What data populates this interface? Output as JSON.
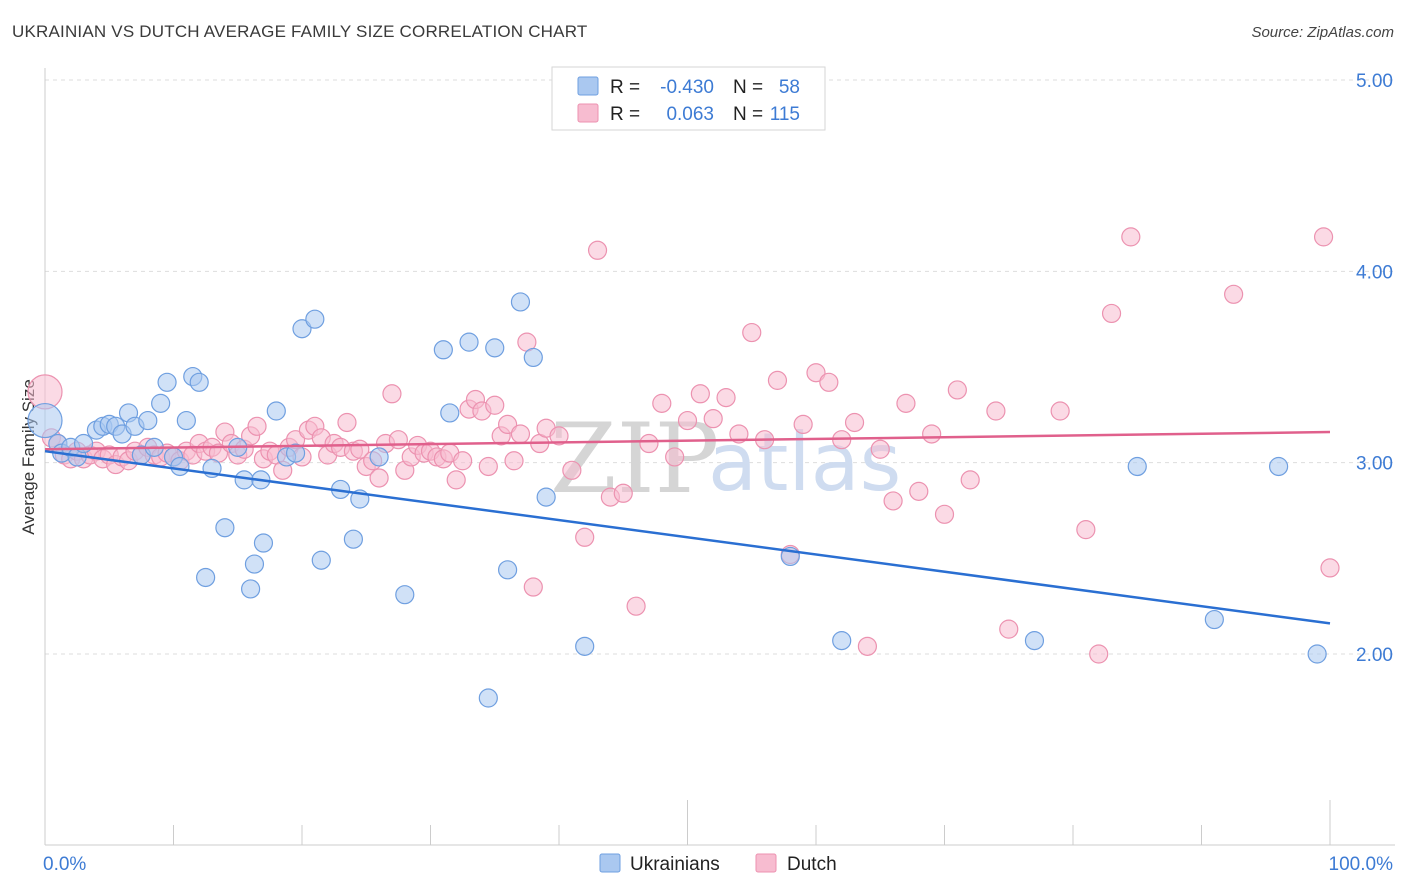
{
  "title": "UKRAINIAN VS DUTCH AVERAGE FAMILY SIZE CORRELATION CHART",
  "source": "Source: ZipAtlas.com",
  "watermark": {
    "zip": "ZIP",
    "atlas": "atlas"
  },
  "colors": {
    "ukrainians_fill": "#aac8f0",
    "ukrainians_stroke": "#6f9fe0",
    "ukrainians_line": "#2a6fd2",
    "dutch_fill": "#f7bcd0",
    "dutch_stroke": "#ec92b0",
    "dutch_line": "#e0608c",
    "axis_text": "#3d7bd4",
    "grid": "#dddddd"
  },
  "stats": [
    {
      "r_label": "R =",
      "r_value": "-0.430",
      "n_label": "N =",
      "n_value": "58",
      "color": "#aac8f0"
    },
    {
      "r_label": "R =",
      "r_value": "0.063",
      "n_label": "N =",
      "n_value": "115",
      "color": "#f7bcd0"
    }
  ],
  "chart_data": {
    "type": "scatter",
    "title": "UKRAINIAN VS DUTCH AVERAGE FAMILY SIZE CORRELATION CHART",
    "xlabel": "",
    "ylabel": "Average Family Size",
    "xlim": [
      0,
      100
    ],
    "ylim": [
      1.0,
      5.1
    ],
    "x_tick_labels": [
      "0.0%",
      "100.0%"
    ],
    "y_ticks": [
      2.0,
      3.0,
      4.0,
      5.0
    ],
    "y_tick_labels": [
      "2.00",
      "3.00",
      "4.00",
      "5.00"
    ],
    "grid": true,
    "legend": "bottom-center",
    "series": [
      {
        "name": "Ukrainians",
        "trend": {
          "x": [
            0,
            100
          ],
          "y": [
            3.06,
            2.16
          ]
        },
        "points": [
          [
            0,
            3.22
          ],
          [
            1,
            3.1
          ],
          [
            1.3,
            3.05
          ],
          [
            2,
            3.08
          ],
          [
            2.5,
            3.03
          ],
          [
            3,
            3.1
          ],
          [
            4,
            3.17
          ],
          [
            4.5,
            3.19
          ],
          [
            5,
            3.2
          ],
          [
            5.5,
            3.19
          ],
          [
            6,
            3.15
          ],
          [
            6.5,
            3.26
          ],
          [
            7,
            3.19
          ],
          [
            7.5,
            3.04
          ],
          [
            8,
            3.22
          ],
          [
            8.5,
            3.08
          ],
          [
            9,
            3.31
          ],
          [
            9.5,
            3.42
          ],
          [
            10,
            3.03
          ],
          [
            10.5,
            2.98
          ],
          [
            11,
            3.22
          ],
          [
            11.5,
            3.45
          ],
          [
            12,
            3.42
          ],
          [
            12.5,
            2.4
          ],
          [
            13,
            2.97
          ],
          [
            14,
            2.66
          ],
          [
            15,
            3.08
          ],
          [
            15.5,
            2.91
          ],
          [
            16,
            2.34
          ],
          [
            16.3,
            2.47
          ],
          [
            16.8,
            2.91
          ],
          [
            17,
            2.58
          ],
          [
            18,
            3.27
          ],
          [
            18.8,
            3.03
          ],
          [
            19.5,
            3.05
          ],
          [
            20,
            3.7
          ],
          [
            21,
            3.75
          ],
          [
            21.5,
            2.49
          ],
          [
            23,
            2.86
          ],
          [
            24,
            2.6
          ],
          [
            24.5,
            2.81
          ],
          [
            26,
            3.03
          ],
          [
            28,
            2.31
          ],
          [
            31,
            3.59
          ],
          [
            31.5,
            3.26
          ],
          [
            33,
            3.63
          ],
          [
            34.5,
            1.77
          ],
          [
            35,
            3.6
          ],
          [
            36,
            2.44
          ],
          [
            37,
            3.84
          ],
          [
            38,
            3.55
          ],
          [
            39,
            2.82
          ],
          [
            42,
            2.04
          ],
          [
            58,
            2.51
          ],
          [
            62,
            2.07
          ],
          [
            77,
            2.07
          ],
          [
            85,
            2.98
          ],
          [
            96,
            2.98
          ],
          [
            91,
            2.18
          ],
          [
            99,
            2.0
          ]
        ]
      },
      {
        "name": "Dutch",
        "trend": {
          "x": [
            0,
            100
          ],
          "y": [
            3.07,
            3.16
          ]
        },
        "points": [
          [
            0,
            3.37
          ],
          [
            0.5,
            3.13
          ],
          [
            1,
            3.1
          ],
          [
            1.5,
            3.04
          ],
          [
            2,
            3.02
          ],
          [
            2.5,
            3.06
          ],
          [
            3,
            3.02
          ],
          [
            3.5,
            3.04
          ],
          [
            4,
            3.06
          ],
          [
            4.5,
            3.02
          ],
          [
            5,
            3.04
          ],
          [
            5.5,
            2.99
          ],
          [
            6,
            3.03
          ],
          [
            6.5,
            3.01
          ],
          [
            7,
            3.06
          ],
          [
            7.5,
            3.04
          ],
          [
            8,
            3.08
          ],
          [
            8.5,
            3.04
          ],
          [
            9,
            3.03
          ],
          [
            9.5,
            3.05
          ],
          [
            10,
            3.03
          ],
          [
            10.5,
            3.01
          ],
          [
            11,
            3.06
          ],
          [
            11.5,
            3.04
          ],
          [
            12,
            3.1
          ],
          [
            12.5,
            3.06
          ],
          [
            13,
            3.08
          ],
          [
            13.5,
            3.05
          ],
          [
            14,
            3.16
          ],
          [
            14.5,
            3.1
          ],
          [
            15,
            3.04
          ],
          [
            15.5,
            3.07
          ],
          [
            16,
            3.14
          ],
          [
            16.5,
            3.19
          ],
          [
            17,
            3.02
          ],
          [
            17.5,
            3.06
          ],
          [
            18,
            3.04
          ],
          [
            18.5,
            2.96
          ],
          [
            19,
            3.08
          ],
          [
            19.5,
            3.12
          ],
          [
            20,
            3.03
          ],
          [
            20.5,
            3.17
          ],
          [
            21,
            3.19
          ],
          [
            21.5,
            3.13
          ],
          [
            22,
            3.04
          ],
          [
            22.5,
            3.1
          ],
          [
            23,
            3.08
          ],
          [
            23.5,
            3.21
          ],
          [
            24,
            3.06
          ],
          [
            24.5,
            3.07
          ],
          [
            25,
            2.98
          ],
          [
            25.5,
            3.01
          ],
          [
            26,
            2.92
          ],
          [
            26.5,
            3.1
          ],
          [
            27,
            3.36
          ],
          [
            27.5,
            3.12
          ],
          [
            28,
            2.96
          ],
          [
            28.5,
            3.03
          ],
          [
            29,
            3.09
          ],
          [
            29.5,
            3.05
          ],
          [
            30,
            3.06
          ],
          [
            30.5,
            3.03
          ],
          [
            31,
            3.02
          ],
          [
            31.5,
            3.05
          ],
          [
            32,
            2.91
          ],
          [
            32.5,
            3.01
          ],
          [
            33,
            3.28
          ],
          [
            33.5,
            3.33
          ],
          [
            34,
            3.27
          ],
          [
            34.5,
            2.98
          ],
          [
            35,
            3.3
          ],
          [
            35.5,
            3.14
          ],
          [
            36,
            3.2
          ],
          [
            36.5,
            3.01
          ],
          [
            37,
            3.15
          ],
          [
            37.5,
            3.63
          ],
          [
            38,
            2.35
          ],
          [
            38.5,
            3.1
          ],
          [
            39,
            3.18
          ],
          [
            40,
            3.14
          ],
          [
            41,
            2.96
          ],
          [
            42,
            2.61
          ],
          [
            43,
            4.11
          ],
          [
            44,
            2.82
          ],
          [
            45,
            2.84
          ],
          [
            46,
            2.25
          ],
          [
            47,
            3.1
          ],
          [
            48,
            3.31
          ],
          [
            49,
            3.03
          ],
          [
            50,
            3.22
          ],
          [
            51,
            3.36
          ],
          [
            52,
            3.23
          ],
          [
            53,
            3.34
          ],
          [
            54,
            3.15
          ],
          [
            55,
            3.68
          ],
          [
            56,
            3.12
          ],
          [
            57,
            3.43
          ],
          [
            58,
            2.52
          ],
          [
            59,
            3.2
          ],
          [
            60,
            3.47
          ],
          [
            61,
            3.42
          ],
          [
            62,
            3.12
          ],
          [
            63,
            3.21
          ],
          [
            64,
            2.04
          ],
          [
            65,
            3.07
          ],
          [
            66,
            2.8
          ],
          [
            67,
            3.31
          ],
          [
            68,
            2.85
          ],
          [
            69,
            3.15
          ],
          [
            70,
            2.73
          ],
          [
            71,
            3.38
          ],
          [
            72,
            2.91
          ],
          [
            74,
            3.27
          ],
          [
            75,
            2.13
          ],
          [
            79,
            3.27
          ],
          [
            81,
            2.65
          ],
          [
            82,
            2.0
          ],
          [
            83,
            3.78
          ],
          [
            84.5,
            4.18
          ],
          [
            92.5,
            3.88
          ],
          [
            99.5,
            4.18
          ],
          [
            100,
            2.45
          ]
        ]
      }
    ]
  }
}
